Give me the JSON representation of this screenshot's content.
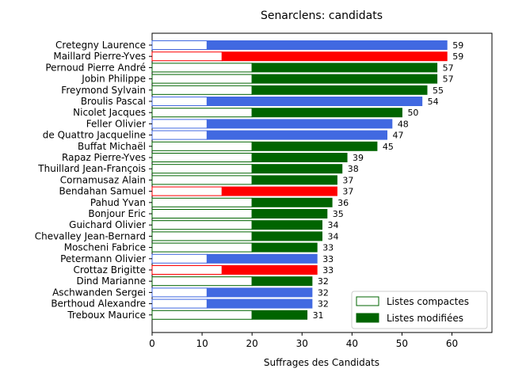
{
  "chart_data": {
    "type": "bar",
    "orientation": "horizontal",
    "title": "Senarclens: candidats",
    "xlabel": "Suffrages des Candidats",
    "ylabel": "",
    "xlim": [
      0,
      68
    ],
    "xticks": [
      0,
      10,
      20,
      30,
      40,
      50,
      60
    ],
    "grid": false,
    "legend": {
      "placement": "lower-right",
      "entries": [
        {
          "name": "Listes compactes",
          "style": "outline",
          "color": "#006400"
        },
        {
          "name": "Listes modifiées",
          "style": "filled",
          "color": "#006400"
        }
      ]
    },
    "colors": {
      "blue": "#4169e1",
      "red": "#ff0000",
      "green": "#006400"
    },
    "categories": [
      "Cretegny Laurence",
      "Maillard Pierre-Yves",
      "Pernoud Pierre André",
      "Jobin Philippe",
      "Freymond Sylvain",
      "Broulis Pascal",
      "Nicolet Jacques",
      "Feller Olivier",
      "de Quattro Jacqueline",
      "Buffat Michaël",
      "Rapaz Pierre-Yves",
      "Thuillard Jean-François",
      "Cornamusaz Alain",
      "Bendahan Samuel",
      "Pahud Yvan",
      "Bonjour Eric",
      "Guichard Olivier",
      "Chevalley Jean-Bernard",
      "Moscheni Fabrice",
      "Petermann Olivier",
      "Crottaz Brigitte",
      "Dind Marianne",
      "Aschwanden Sergei",
      "Berthoud Alexandre",
      "Treboux Maurice"
    ],
    "bar_colors": [
      "blue",
      "red",
      "green",
      "green",
      "green",
      "blue",
      "green",
      "blue",
      "blue",
      "green",
      "green",
      "green",
      "green",
      "red",
      "green",
      "green",
      "green",
      "green",
      "green",
      "blue",
      "red",
      "green",
      "blue",
      "blue",
      "green"
    ],
    "series": [
      {
        "name": "Listes compactes",
        "values": [
          11,
          14,
          20,
          20,
          20,
          11,
          20,
          11,
          11,
          20,
          20,
          20,
          20,
          14,
          20,
          20,
          20,
          20,
          20,
          11,
          14,
          20,
          11,
          11,
          20
        ]
      },
      {
        "name": "Listes modifiées",
        "values": [
          48,
          45,
          37,
          37,
          35,
          43,
          30,
          37,
          36,
          25,
          19,
          18,
          17,
          23,
          16,
          15,
          14,
          14,
          13,
          22,
          19,
          12,
          21,
          21,
          11
        ]
      }
    ],
    "totals": [
      59,
      59,
      57,
      57,
      55,
      54,
      50,
      48,
      47,
      45,
      39,
      38,
      37,
      37,
      36,
      35,
      34,
      34,
      33,
      33,
      33,
      32,
      32,
      32,
      31
    ]
  }
}
